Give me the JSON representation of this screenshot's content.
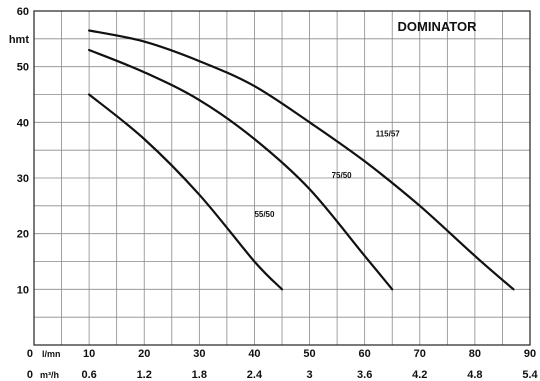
{
  "chart_data": {
    "type": "line",
    "title": "DOMINATOR",
    "ylabel": "hmt",
    "ylim": [
      0,
      60
    ],
    "y_ticks": [
      "60",
      "50",
      "40",
      "30",
      "20",
      "10",
      "0"
    ],
    "xlim": [
      0,
      90
    ],
    "x_unit_primary": "l/mn",
    "x_ticks_primary": [
      "10",
      "20",
      "30",
      "40",
      "50",
      "60",
      "70",
      "80",
      "90"
    ],
    "x_unit_secondary": "m³/h",
    "x_ticks_secondary": [
      "0.6",
      "1.2",
      "1.8",
      "2.4",
      "3",
      "3.6",
      "4.2",
      "4.8",
      "5.4"
    ],
    "grid": true,
    "series": [
      {
        "name": "55/50",
        "x": [
          10,
          20,
          30,
          40,
          45
        ],
        "y": [
          45,
          37,
          27,
          15,
          10
        ]
      },
      {
        "name": "75/50",
        "x": [
          10,
          20,
          30,
          40,
          50,
          60,
          65
        ],
        "y": [
          53,
          49,
          44,
          37,
          28,
          16,
          10
        ]
      },
      {
        "name": "115/57",
        "x": [
          10,
          20,
          30,
          40,
          50,
          60,
          70,
          80,
          87
        ],
        "y": [
          56.5,
          54.5,
          51,
          46.5,
          40,
          33,
          25,
          16,
          10
        ]
      }
    ],
    "colors": {
      "curve": "#111111",
      "grid": "#8a8a8a",
      "frame": "#222222"
    }
  }
}
